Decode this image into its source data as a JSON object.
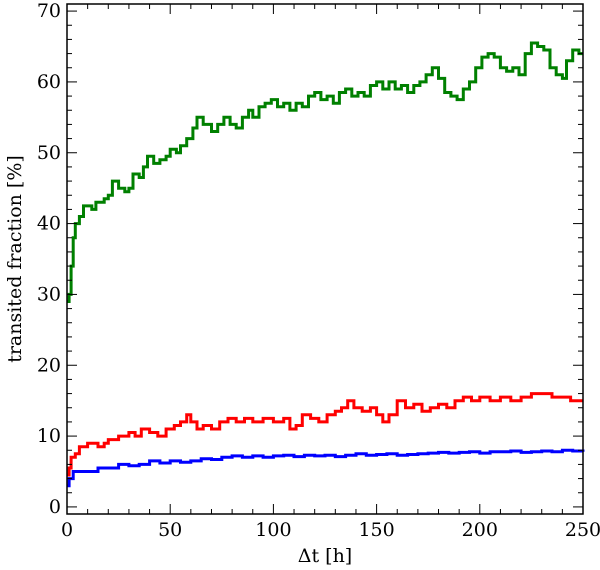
{
  "chart_data": {
    "type": "line",
    "step": true,
    "xlabel": "Δt [h]",
    "ylabel": "transited fraction [%]",
    "xlim": [
      0,
      250
    ],
    "ylim": [
      -1,
      71
    ],
    "xticks": [
      0,
      50,
      100,
      150,
      200,
      250
    ],
    "yticks": [
      0,
      10,
      20,
      30,
      40,
      50,
      60,
      70
    ],
    "grid": false,
    "legend": "none",
    "series": [
      {
        "color": "#008000",
        "points": [
          [
            0,
            29
          ],
          [
            1,
            30
          ],
          [
            2,
            34
          ],
          [
            3,
            38
          ],
          [
            4,
            40
          ],
          [
            6,
            41
          ],
          [
            8,
            42.5
          ],
          [
            12,
            42
          ],
          [
            14,
            43
          ],
          [
            18,
            43.5
          ],
          [
            20,
            44
          ],
          [
            22,
            46
          ],
          [
            25,
            45
          ],
          [
            28,
            44.5
          ],
          [
            30,
            45
          ],
          [
            32,
            47
          ],
          [
            35,
            46.5
          ],
          [
            37,
            48
          ],
          [
            39,
            49.5
          ],
          [
            42,
            48.5
          ],
          [
            45,
            49
          ],
          [
            48,
            49.5
          ],
          [
            50,
            50.5
          ],
          [
            53,
            50
          ],
          [
            55,
            51
          ],
          [
            58,
            52
          ],
          [
            61,
            53.5
          ],
          [
            63,
            55
          ],
          [
            66,
            54
          ],
          [
            70,
            53
          ],
          [
            73,
            54
          ],
          [
            76,
            55
          ],
          [
            79,
            54
          ],
          [
            82,
            53.5
          ],
          [
            85,
            55
          ],
          [
            88,
            56
          ],
          [
            90,
            55
          ],
          [
            93,
            56.5
          ],
          [
            96,
            57
          ],
          [
            99,
            57.5
          ],
          [
            102,
            56.5
          ],
          [
            105,
            57
          ],
          [
            108,
            56
          ],
          [
            111,
            57
          ],
          [
            114,
            56.5
          ],
          [
            117,
            58
          ],
          [
            120,
            58.5
          ],
          [
            123,
            57.5
          ],
          [
            126,
            58
          ],
          [
            129,
            57
          ],
          [
            132,
            58.5
          ],
          [
            135,
            59
          ],
          [
            138,
            58
          ],
          [
            141,
            58.5
          ],
          [
            144,
            58
          ],
          [
            147,
            59.5
          ],
          [
            150,
            60
          ],
          [
            153,
            59
          ],
          [
            156,
            60
          ],
          [
            159,
            59
          ],
          [
            162,
            59.5
          ],
          [
            165,
            58.5
          ],
          [
            168,
            59.5
          ],
          [
            171,
            60
          ],
          [
            174,
            61
          ],
          [
            177,
            62
          ],
          [
            180,
            60.5
          ],
          [
            183,
            58.5
          ],
          [
            186,
            58
          ],
          [
            189,
            57.5
          ],
          [
            192,
            59
          ],
          [
            195,
            60
          ],
          [
            198,
            62
          ],
          [
            201,
            63.5
          ],
          [
            204,
            64
          ],
          [
            207,
            63.5
          ],
          [
            210,
            62
          ],
          [
            213,
            61.5
          ],
          [
            216,
            62
          ],
          [
            219,
            61
          ],
          [
            222,
            64
          ],
          [
            225,
            65.5
          ],
          [
            228,
            65
          ],
          [
            231,
            64.5
          ],
          [
            234,
            62
          ],
          [
            237,
            61
          ],
          [
            240,
            60.5
          ],
          [
            242,
            63
          ],
          [
            245,
            64.5
          ],
          [
            248,
            64
          ],
          [
            250,
            64
          ]
        ]
      },
      {
        "color": "#ff0000",
        "points": [
          [
            0,
            4.5
          ],
          [
            1,
            5.5
          ],
          [
            2,
            7
          ],
          [
            4,
            7.5
          ],
          [
            6,
            8.5
          ],
          [
            10,
            9
          ],
          [
            15,
            8.5
          ],
          [
            18,
            9
          ],
          [
            20,
            9.5
          ],
          [
            25,
            10
          ],
          [
            30,
            10.5
          ],
          [
            33,
            10
          ],
          [
            36,
            11
          ],
          [
            40,
            10.5
          ],
          [
            44,
            10
          ],
          [
            48,
            11
          ],
          [
            52,
            11.5
          ],
          [
            55,
            12
          ],
          [
            58,
            13
          ],
          [
            60,
            12
          ],
          [
            63,
            11
          ],
          [
            66,
            11.5
          ],
          [
            70,
            11
          ],
          [
            74,
            12
          ],
          [
            78,
            12.5
          ],
          [
            82,
            12
          ],
          [
            86,
            12.5
          ],
          [
            90,
            12
          ],
          [
            95,
            12.5
          ],
          [
            100,
            12
          ],
          [
            105,
            12.5
          ],
          [
            108,
            11
          ],
          [
            111,
            11.5
          ],
          [
            114,
            13
          ],
          [
            118,
            12.5
          ],
          [
            122,
            12
          ],
          [
            126,
            13
          ],
          [
            130,
            13.5
          ],
          [
            133,
            14
          ],
          [
            136,
            15
          ],
          [
            139,
            14
          ],
          [
            143,
            13.5
          ],
          [
            147,
            14
          ],
          [
            150,
            13
          ],
          [
            153,
            12
          ],
          [
            156,
            13
          ],
          [
            160,
            15
          ],
          [
            164,
            14
          ],
          [
            168,
            14.5
          ],
          [
            172,
            13.5
          ],
          [
            176,
            14
          ],
          [
            180,
            14.5
          ],
          [
            184,
            14
          ],
          [
            188,
            15
          ],
          [
            192,
            15.5
          ],
          [
            196,
            15
          ],
          [
            200,
            15.5
          ],
          [
            205,
            15
          ],
          [
            210,
            15.5
          ],
          [
            215,
            15
          ],
          [
            220,
            15.5
          ],
          [
            225,
            16
          ],
          [
            230,
            16
          ],
          [
            235,
            15.5
          ],
          [
            240,
            15.5
          ],
          [
            244,
            15
          ],
          [
            248,
            15
          ],
          [
            250,
            15
          ]
        ]
      },
      {
        "color": "#0000ff",
        "points": [
          [
            0,
            3
          ],
          [
            1,
            4
          ],
          [
            3,
            5
          ],
          [
            6,
            5
          ],
          [
            10,
            5
          ],
          [
            15,
            5.5
          ],
          [
            20,
            5.5
          ],
          [
            25,
            6
          ],
          [
            30,
            5.8
          ],
          [
            35,
            6
          ],
          [
            40,
            6.5
          ],
          [
            45,
            6.2
          ],
          [
            50,
            6.5
          ],
          [
            55,
            6.3
          ],
          [
            60,
            6.5
          ],
          [
            65,
            6.8
          ],
          [
            70,
            6.7
          ],
          [
            75,
            7
          ],
          [
            80,
            7.2
          ],
          [
            85,
            7
          ],
          [
            90,
            7.2
          ],
          [
            95,
            7
          ],
          [
            100,
            7.2
          ],
          [
            105,
            7.3
          ],
          [
            110,
            7.1
          ],
          [
            115,
            7.3
          ],
          [
            120,
            7.2
          ],
          [
            125,
            7.3
          ],
          [
            130,
            7.1
          ],
          [
            135,
            7.3
          ],
          [
            140,
            7.5
          ],
          [
            145,
            7.3
          ],
          [
            150,
            7.4
          ],
          [
            155,
            7.5
          ],
          [
            160,
            7.3
          ],
          [
            165,
            7.4
          ],
          [
            170,
            7.5
          ],
          [
            175,
            7.6
          ],
          [
            180,
            7.7
          ],
          [
            185,
            7.6
          ],
          [
            190,
            7.7
          ],
          [
            195,
            7.8
          ],
          [
            200,
            7.6
          ],
          [
            205,
            7.8
          ],
          [
            210,
            7.8
          ],
          [
            215,
            7.9
          ],
          [
            220,
            7.7
          ],
          [
            225,
            7.8
          ],
          [
            230,
            7.9
          ],
          [
            235,
            7.8
          ],
          [
            240,
            8
          ],
          [
            245,
            7.9
          ],
          [
            250,
            7.8
          ]
        ]
      }
    ]
  }
}
